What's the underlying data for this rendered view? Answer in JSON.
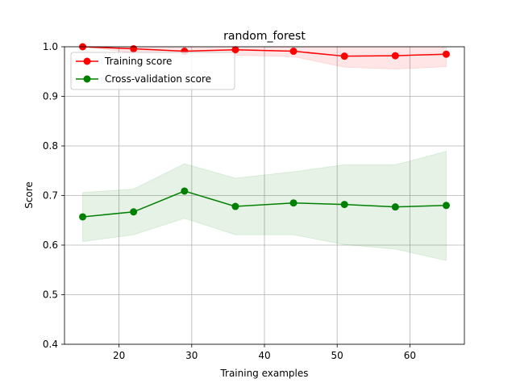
{
  "chart_data": {
    "type": "line",
    "title": "random_forest",
    "xlabel": "Training examples",
    "ylabel": "Score",
    "xlim": [
      12.5,
      67.5
    ],
    "ylim": [
      0.4,
      1.0
    ],
    "xticks": [
      20,
      30,
      40,
      50,
      60
    ],
    "yticks": [
      0.4,
      0.5,
      0.6,
      0.7,
      0.8,
      0.9,
      1.0
    ],
    "xtick_labels": [
      "20",
      "30",
      "40",
      "50",
      "60"
    ],
    "ytick_labels": [
      "0.4",
      "0.5",
      "0.6",
      "0.7",
      "0.8",
      "0.9",
      "1.0"
    ],
    "grid": true,
    "legend_position": "top-left",
    "x": [
      15,
      22,
      29,
      36,
      44,
      51,
      58,
      65
    ],
    "series": [
      {
        "name": "Training score",
        "color": "#ff0000",
        "values": [
          1.0,
          0.996,
          0.991,
          0.994,
          0.991,
          0.981,
          0.982,
          0.985
        ],
        "band_lower": [
          1.0,
          0.988,
          0.978,
          0.983,
          0.98,
          0.959,
          0.955,
          0.96
        ],
        "band_upper": [
          1.0,
          1.0,
          1.0,
          1.0,
          1.0,
          1.0,
          1.0,
          1.0
        ],
        "band_color": "#ff0000"
      },
      {
        "name": "Cross-validation score",
        "color": "#008000",
        "values": [
          0.657,
          0.667,
          0.709,
          0.678,
          0.685,
          0.682,
          0.677,
          0.68
        ],
        "band_lower": [
          0.607,
          0.621,
          0.654,
          0.621,
          0.621,
          0.601,
          0.592,
          0.569
        ],
        "band_upper": [
          0.706,
          0.713,
          0.764,
          0.735,
          0.748,
          0.762,
          0.762,
          0.789
        ],
        "band_color": "#008000"
      }
    ]
  }
}
